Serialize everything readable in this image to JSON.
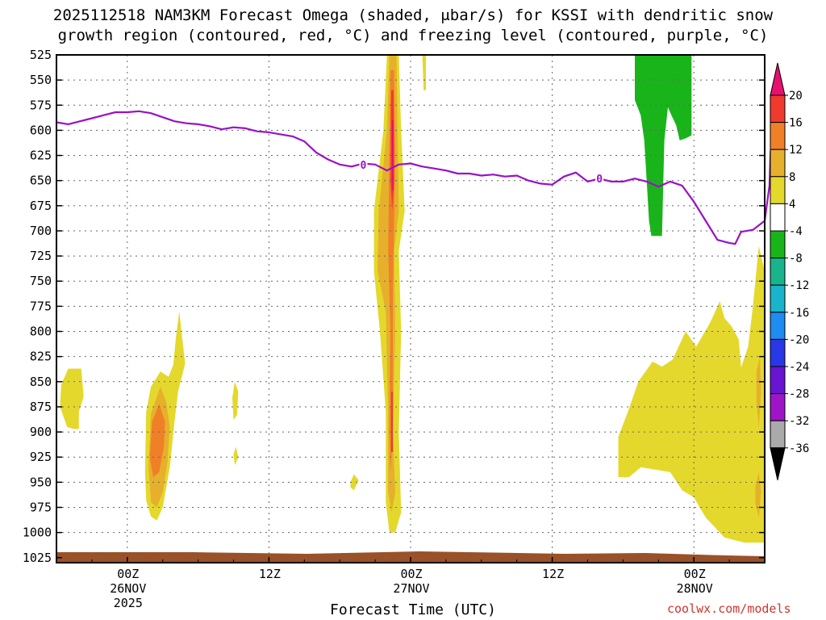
{
  "chart_data": {
    "type": "heatmap",
    "title_line1": "2025112518 NAM3KM Forecast Omega (shaded, μbar/s) for KSSI with dendritic snow",
    "title_line2": "growth region (contoured, red, °C) and freezing level (contoured, purple, °C)",
    "xlabel": "Forecast Time (UTC)",
    "ylabel": "",
    "credit": "coolwx.com/models",
    "y_axis": {
      "unit": "mb",
      "ticks": [
        525,
        550,
        575,
        600,
        625,
        650,
        675,
        700,
        725,
        750,
        775,
        800,
        825,
        850,
        875,
        900,
        925,
        950,
        975,
        1000,
        1025
      ],
      "range": [
        525,
        1030
      ]
    },
    "x_axis": {
      "unit": "forecast hour",
      "range": [
        0,
        60
      ],
      "ticks": [
        {
          "hour": 6,
          "label": "00Z",
          "sub1": "26NOV",
          "sub2": "2025"
        },
        {
          "hour": 18,
          "label": "12Z",
          "sub1": "",
          "sub2": ""
        },
        {
          "hour": 30,
          "label": "00Z",
          "sub1": "27NOV",
          "sub2": ""
        },
        {
          "hour": 42,
          "label": "12Z",
          "sub1": "",
          "sub2": ""
        },
        {
          "hour": 54,
          "label": "00Z",
          "sub1": "28NOV",
          "sub2": ""
        }
      ]
    },
    "colorbar": {
      "levels": [
        20,
        16,
        12,
        8,
        4,
        -4,
        -8,
        -12,
        -16,
        -20,
        -24,
        -28,
        -32,
        -36
      ],
      "colors": [
        "#e8106e",
        "#f03a2e",
        "#f08028",
        "#e6b02c",
        "#e4d82c",
        "#ffffff",
        "#19b419",
        "#19b48c",
        "#19b4cc",
        "#1e8cf0",
        "#2838e6",
        "#6814d2",
        "#a014c8",
        "#aaaaaa",
        "#000000"
      ]
    },
    "freezing_level": {
      "label": "0",
      "points": [
        [
          0,
          592
        ],
        [
          1,
          594
        ],
        [
          2,
          591
        ],
        [
          3,
          588
        ],
        [
          4,
          585
        ],
        [
          5,
          582
        ],
        [
          6,
          582
        ],
        [
          7,
          581
        ],
        [
          8,
          583
        ],
        [
          9,
          587
        ],
        [
          10,
          591
        ],
        [
          11,
          593
        ],
        [
          12,
          594
        ],
        [
          13,
          596
        ],
        [
          14,
          599
        ],
        [
          15,
          597
        ],
        [
          16,
          598
        ],
        [
          17,
          601
        ],
        [
          18,
          602
        ],
        [
          19,
          604
        ],
        [
          20,
          606
        ],
        [
          21,
          611
        ],
        [
          22,
          622
        ],
        [
          23,
          629
        ],
        [
          24,
          634
        ],
        [
          25,
          636
        ],
        [
          26,
          633
        ],
        [
          27,
          634
        ],
        [
          28,
          640
        ],
        [
          29,
          634
        ],
        [
          30,
          633
        ],
        [
          31,
          636
        ],
        [
          32,
          638
        ],
        [
          33,
          640
        ],
        [
          34,
          643
        ],
        [
          35,
          643
        ],
        [
          36,
          645
        ],
        [
          37,
          644
        ],
        [
          38,
          646
        ],
        [
          39,
          645
        ],
        [
          40,
          650
        ],
        [
          41,
          653
        ],
        [
          42,
          654
        ],
        [
          43,
          646
        ],
        [
          44,
          642
        ],
        [
          45,
          651
        ],
        [
          46,
          648
        ],
        [
          47,
          651
        ],
        [
          48,
          651
        ],
        [
          49,
          648
        ],
        [
          50,
          651
        ],
        [
          51,
          656
        ],
        [
          52,
          651
        ],
        [
          53,
          655
        ],
        [
          54,
          671
        ],
        [
          55,
          690
        ],
        [
          56,
          709
        ],
        [
          57,
          712
        ],
        [
          57.5,
          713
        ],
        [
          58,
          701
        ],
        [
          59,
          699
        ],
        [
          60,
          690
        ],
        [
          60.4,
          655
        ],
        [
          60.5,
          620
        ]
      ]
    },
    "regions": [
      {
        "level": 4,
        "points": [
          [
            0.4,
            853
          ],
          [
            1.0,
            837
          ],
          [
            2.1,
            837
          ],
          [
            2.3,
            865
          ],
          [
            1.9,
            880
          ],
          [
            1.9,
            897
          ],
          [
            1.4,
            897
          ],
          [
            0.9,
            895
          ],
          [
            0.3,
            875
          ]
        ]
      },
      {
        "level": 4,
        "points": [
          [
            7.5,
            940
          ],
          [
            7.6,
            880
          ],
          [
            8.0,
            855
          ],
          [
            8.8,
            840
          ],
          [
            9.5,
            845
          ],
          [
            9.9,
            833
          ],
          [
            10.1,
            808
          ],
          [
            10.4,
            780
          ],
          [
            10.9,
            832
          ],
          [
            10.3,
            860
          ],
          [
            10.0,
            890
          ],
          [
            9.6,
            935
          ],
          [
            9.0,
            975
          ],
          [
            8.5,
            988
          ],
          [
            8.0,
            984
          ],
          [
            7.6,
            968
          ]
        ]
      },
      {
        "level": 8,
        "points": [
          [
            7.8,
            935
          ],
          [
            8.0,
            882
          ],
          [
            8.8,
            855
          ],
          [
            9.3,
            870
          ],
          [
            9.6,
            895
          ],
          [
            9.4,
            930
          ],
          [
            9.0,
            960
          ],
          [
            8.5,
            975
          ],
          [
            8.0,
            970
          ]
        ]
      },
      {
        "level": 12,
        "points": [
          [
            7.9,
            925
          ],
          [
            8.1,
            890
          ],
          [
            8.7,
            872
          ],
          [
            9.2,
            890
          ],
          [
            9.1,
            915
          ],
          [
            8.7,
            940
          ],
          [
            8.2,
            945
          ]
        ]
      },
      {
        "level": 4,
        "points": [
          [
            14.9,
            866
          ],
          [
            15.1,
            850
          ],
          [
            15.4,
            860
          ],
          [
            15.3,
            883
          ],
          [
            15.0,
            888
          ]
        ]
      },
      {
        "level": 4,
        "points": [
          [
            15.0,
            922
          ],
          [
            15.2,
            915
          ],
          [
            15.4,
            925
          ],
          [
            15.1,
            933
          ]
        ]
      },
      {
        "level": 4,
        "points": [
          [
            24.9,
            950
          ],
          [
            25.2,
            942
          ],
          [
            25.6,
            948
          ],
          [
            25.2,
            958
          ],
          [
            24.9,
            955
          ]
        ]
      },
      {
        "level": 4,
        "points": [
          [
            28.0,
            525
          ],
          [
            29.0,
            525
          ],
          [
            29.2,
            600
          ],
          [
            29.5,
            680
          ],
          [
            29.0,
            720
          ],
          [
            29.2,
            800
          ],
          [
            29.0,
            900
          ],
          [
            29.2,
            980
          ],
          [
            28.7,
            1000
          ],
          [
            28.2,
            1000
          ],
          [
            27.9,
            970
          ],
          [
            27.9,
            880
          ],
          [
            27.4,
            800
          ],
          [
            26.9,
            740
          ],
          [
            26.9,
            680
          ],
          [
            27.7,
            600
          ]
        ]
      },
      {
        "level": 8,
        "points": [
          [
            28.2,
            525
          ],
          [
            28.8,
            525
          ],
          [
            28.9,
            600
          ],
          [
            29.0,
            680
          ],
          [
            28.6,
            720
          ],
          [
            28.7,
            800
          ],
          [
            28.5,
            900
          ],
          [
            28.7,
            960
          ],
          [
            28.4,
            980
          ],
          [
            28.1,
            960
          ],
          [
            28.1,
            880
          ],
          [
            27.9,
            780
          ],
          [
            27.2,
            740
          ],
          [
            27.3,
            680
          ],
          [
            28.0,
            600
          ]
        ]
      },
      {
        "level": 12,
        "points": [
          [
            28.3,
            540
          ],
          [
            28.6,
            540
          ],
          [
            28.7,
            620
          ],
          [
            28.6,
            700
          ],
          [
            28.5,
            760
          ],
          [
            28.5,
            900
          ],
          [
            28.3,
            940
          ],
          [
            28.2,
            900
          ],
          [
            28.3,
            800
          ],
          [
            28.1,
            720
          ],
          [
            28.2,
            620
          ]
        ]
      },
      {
        "level": 16,
        "points": [
          [
            28.35,
            560
          ],
          [
            28.55,
            560
          ],
          [
            28.6,
            650
          ],
          [
            28.45,
            680
          ],
          [
            28.3,
            650
          ]
        ]
      },
      {
        "level": 20,
        "points": [
          [
            28.4,
            590
          ],
          [
            28.55,
            590
          ],
          [
            28.55,
            660
          ],
          [
            28.45,
            660
          ]
        ]
      },
      {
        "level": 16,
        "points": [
          [
            28.35,
            860
          ],
          [
            28.5,
            860
          ],
          [
            28.5,
            920
          ],
          [
            28.35,
            920
          ]
        ]
      },
      {
        "level": 4,
        "points": [
          [
            31.0,
            525
          ],
          [
            31.3,
            525
          ],
          [
            31.3,
            560
          ],
          [
            31.1,
            560
          ]
        ]
      },
      {
        "level": -8,
        "points": [
          [
            49.0,
            525
          ],
          [
            53.8,
            525
          ],
          [
            53.8,
            605
          ],
          [
            53.3,
            608
          ],
          [
            52.8,
            610
          ],
          [
            52.5,
            595
          ],
          [
            52.1,
            585
          ],
          [
            51.8,
            577
          ],
          [
            51.5,
            610
          ],
          [
            51.4,
            655
          ],
          [
            51.3,
            705
          ],
          [
            50.4,
            705
          ],
          [
            50.2,
            690
          ],
          [
            50.0,
            650
          ],
          [
            49.8,
            610
          ],
          [
            49.5,
            585
          ],
          [
            49.0,
            570
          ]
        ]
      },
      {
        "level": 4,
        "points": [
          [
            47.6,
            945
          ],
          [
            47.6,
            905
          ],
          [
            48.4,
            880
          ],
          [
            49.3,
            850
          ],
          [
            50.5,
            830
          ],
          [
            51.3,
            835
          ],
          [
            52.2,
            828
          ],
          [
            53.3,
            800
          ],
          [
            54.2,
            815
          ],
          [
            55.2,
            795
          ],
          [
            55.5,
            788
          ],
          [
            56.2,
            770
          ],
          [
            56.6,
            787
          ],
          [
            57.2,
            795
          ],
          [
            57.8,
            808
          ],
          [
            58.0,
            836
          ],
          [
            58.6,
            815
          ],
          [
            59.0,
            775
          ],
          [
            59.5,
            715
          ],
          [
            60.0,
            740
          ],
          [
            60.0,
            1010
          ],
          [
            58.3,
            1010
          ],
          [
            56.6,
            1005
          ],
          [
            55.0,
            985
          ],
          [
            54.0,
            965
          ],
          [
            53.0,
            958
          ],
          [
            52.0,
            940
          ],
          [
            51.0,
            938
          ],
          [
            49.5,
            935
          ],
          [
            48.5,
            945
          ]
        ]
      },
      {
        "level": 8,
        "points": [
          [
            59.3,
            840
          ],
          [
            59.6,
            825
          ],
          [
            59.7,
            860
          ],
          [
            59.5,
            895
          ],
          [
            59.3,
            870
          ]
        ]
      },
      {
        "level": 8,
        "points": [
          [
            59.2,
            955
          ],
          [
            59.5,
            940
          ],
          [
            59.7,
            960
          ],
          [
            59.5,
            985
          ],
          [
            59.2,
            970
          ]
        ]
      }
    ]
  }
}
